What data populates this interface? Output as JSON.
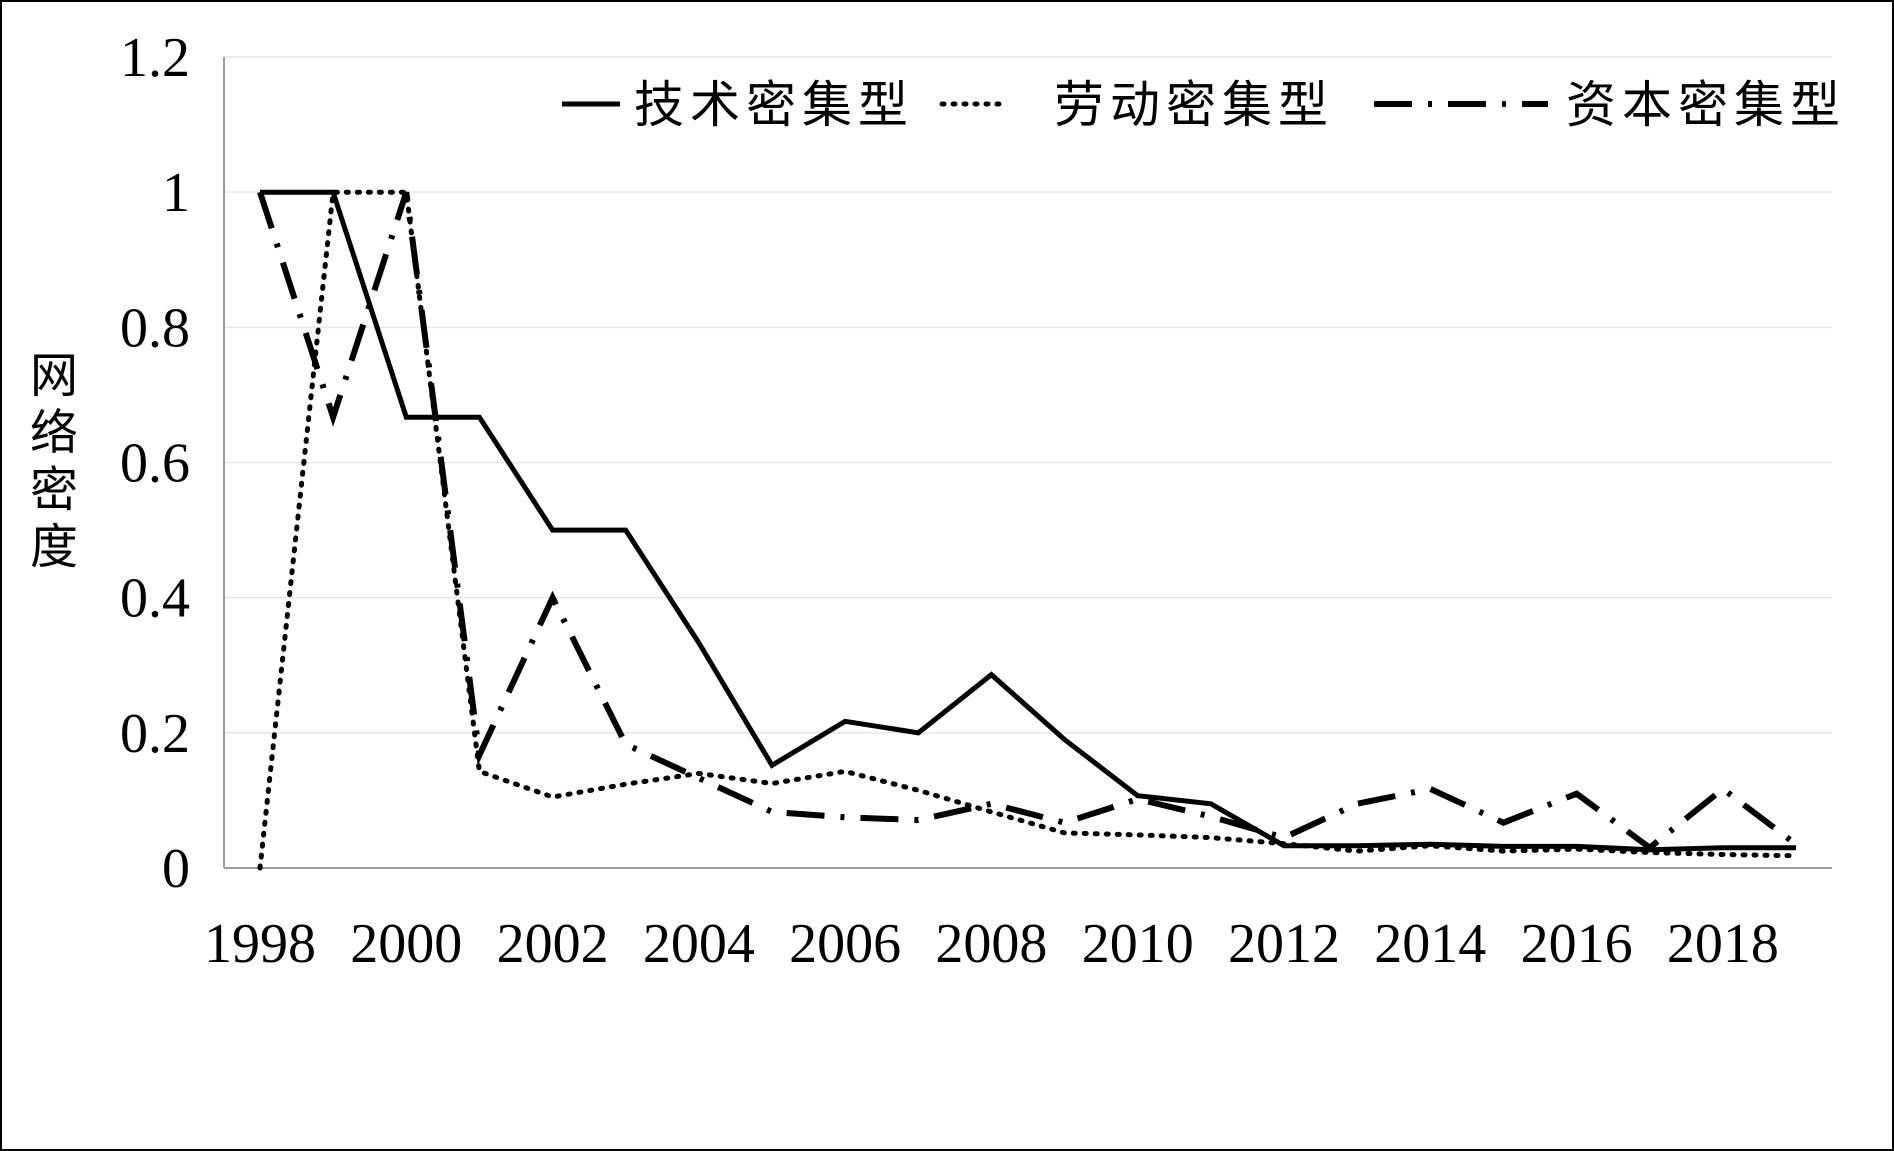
{
  "chart_data": {
    "type": "line",
    "title": "",
    "ylabel": "网络密度",
    "xlabel": "",
    "x": [
      1998,
      1999,
      2000,
      2001,
      2002,
      2003,
      2004,
      2005,
      2006,
      2007,
      2008,
      2009,
      2010,
      2011,
      2012,
      2013,
      2014,
      2015,
      2016,
      2017,
      2018,
      2019
    ],
    "xticks": [
      "1998",
      "2000",
      "2002",
      "2004",
      "2006",
      "2008",
      "2010",
      "2012",
      "2014",
      "2016",
      "2018"
    ],
    "yticks": [
      "0",
      "0.2",
      "0.4",
      "0.6",
      "0.8",
      "1",
      "1.2"
    ],
    "ylim": [
      0,
      1.2
    ],
    "grid": true,
    "legend_position": "top-right",
    "series": [
      {
        "name": "技术密集型",
        "style": "solid",
        "values": [
          1,
          1,
          0.667,
          0.667,
          0.5,
          0.5,
          0.333,
          0.152,
          0.217,
          0.2,
          0.286,
          0.19,
          0.107,
          0.095,
          0.033,
          0.033,
          0.035,
          0.032,
          0.032,
          0.027,
          0.03,
          0.03
        ]
      },
      {
        "name": "劳动密集型",
        "style": "dotted",
        "values": [
          0,
          1,
          1,
          0.143,
          0.105,
          0.124,
          0.14,
          0.125,
          0.143,
          0.115,
          0.083,
          0.052,
          0.049,
          0.045,
          0.036,
          0.025,
          0.033,
          0.025,
          0.028,
          0.023,
          0.02,
          0.018
        ]
      },
      {
        "name": "资本密集型",
        "style": "dash-dot",
        "values": [
          1,
          0.667,
          1,
          0.167,
          0.4,
          0.183,
          0.133,
          0.083,
          0.075,
          0.071,
          0.095,
          0.067,
          0.102,
          0.076,
          0.045,
          0.095,
          0.117,
          0.067,
          0.11,
          0.03,
          0.117,
          0.035
        ]
      }
    ],
    "colors": {
      "line": "#000000",
      "grid": "#e6e6e6",
      "axis": "#9a9a9a"
    }
  }
}
